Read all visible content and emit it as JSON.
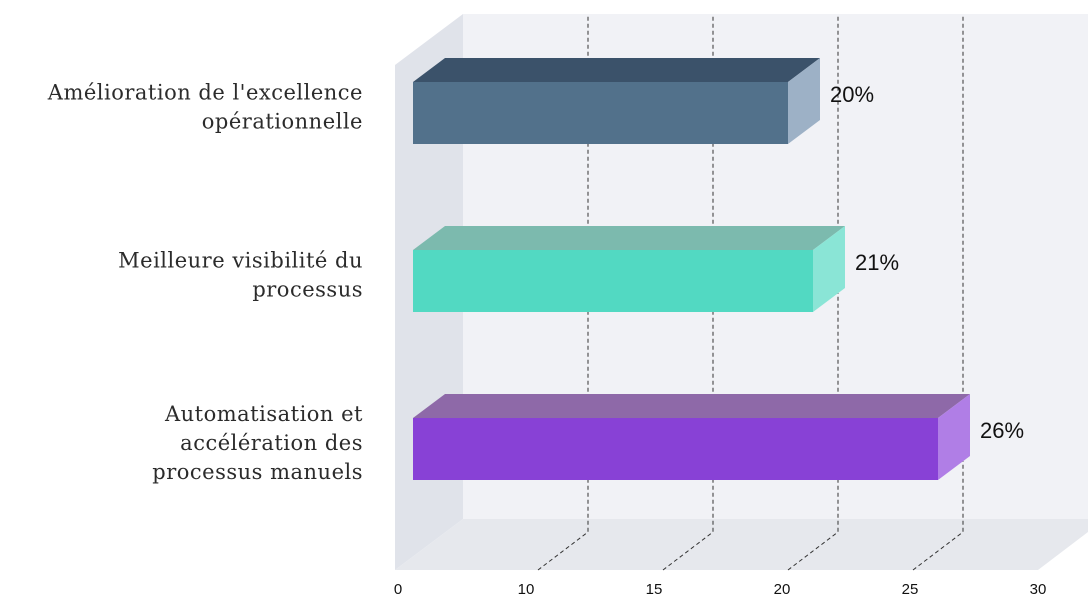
{
  "chart_data": {
    "type": "bar",
    "orientation": "horizontal",
    "three_d": true,
    "categories": [
      [
        "Amélioration de l'excellence",
        "opérationnelle"
      ],
      [
        "Meilleure visibilité du",
        "processus"
      ],
      [
        "Automatisation et",
        "accélération des",
        "processus manuels"
      ]
    ],
    "values": [
      20,
      21,
      26
    ],
    "value_labels": [
      "20%",
      "21%",
      "26%"
    ],
    "xlim": [
      5,
      30
    ],
    "x_ticks": [
      "0",
      "10",
      "15",
      "20",
      "25",
      "30"
    ],
    "grid": true,
    "colors": {
      "front": [
        "#52718b",
        "#52d9c2",
        "#8841d6"
      ],
      "top": [
        "#3b526a",
        "#7cbaae",
        "#8e69a8"
      ],
      "side": [
        "#9db1c6",
        "#8ae5d6",
        "#b07ee6"
      ],
      "floor": "#e6e8ed",
      "back_wall": "#f1f2f6",
      "left_wall": "#e0e3ea"
    }
  }
}
